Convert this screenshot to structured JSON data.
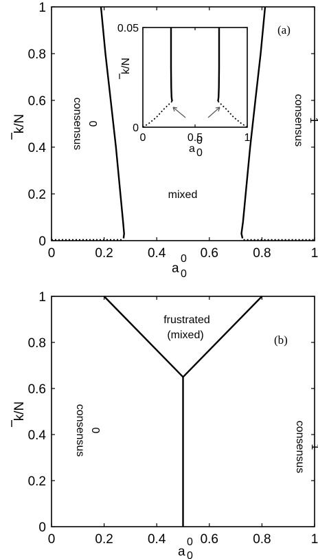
{
  "chart_data": [
    {
      "type": "line",
      "panel_label": "(a)",
      "xlabel": "a",
      "xlabel_sup": "0",
      "xlabel_sub": "0",
      "ylabel": "k/N",
      "xlim": [
        0,
        1
      ],
      "ylim": [
        0,
        1
      ],
      "xticks": [
        "0",
        "0.2",
        "0.4",
        "0.6",
        "0.8",
        "1"
      ],
      "yticks": [
        "0",
        "0.2",
        "0.4",
        "0.6",
        "0.8",
        "1"
      ],
      "annotations": {
        "left_region": "consensus",
        "left_value": "0",
        "middle_region": "mixed",
        "right_region": "consensus",
        "right_value": "1"
      },
      "series": [
        {
          "style": "solid",
          "x": [
            0.188,
            0.205,
            0.225,
            0.245,
            0.262,
            0.272,
            0.276,
            0.274
          ],
          "y": [
            1.0,
            0.8,
            0.6,
            0.4,
            0.2,
            0.08,
            0.03,
            0.01
          ]
        },
        {
          "style": "solid",
          "x": [
            0.812,
            0.795,
            0.775,
            0.755,
            0.738,
            0.728,
            0.722,
            0.726
          ],
          "y": [
            1.0,
            0.8,
            0.6,
            0.4,
            0.2,
            0.08,
            0.03,
            0.01
          ]
        },
        {
          "style": "dotted",
          "x": [
            0.0,
            0.27
          ],
          "y": [
            0.004,
            0.004
          ]
        },
        {
          "style": "dotted",
          "x": [
            0.73,
            1.0
          ],
          "y": [
            0.004,
            0.004
          ]
        }
      ],
      "inset": {
        "xlabel": "a",
        "xlabel_sup": "0",
        "xlabel_sub": "0",
        "ylabel": "k/N",
        "xlim": [
          0,
          1
        ],
        "ylim": [
          0,
          0.05
        ],
        "xticks": [
          "0",
          "0.5",
          "1"
        ],
        "yticks": [
          "0",
          "0.05"
        ],
        "series": [
          {
            "style": "solid",
            "x": [
              0.27,
              0.27,
              0.272,
              0.275,
              0.28
            ],
            "y": [
              0.05,
              0.03,
              0.02,
              0.015,
              0.013
            ]
          },
          {
            "style": "solid",
            "x": [
              0.73,
              0.73,
              0.728,
              0.725,
              0.72
            ],
            "y": [
              0.05,
              0.03,
              0.02,
              0.015,
              0.013
            ]
          },
          {
            "style": "dotted",
            "x": [
              0.0,
              0.06,
              0.13,
              0.2,
              0.28
            ],
            "y": [
              0.0,
              0.002,
              0.005,
              0.009,
              0.013
            ]
          },
          {
            "style": "dotted",
            "x": [
              0.72,
              0.8,
              0.87,
              0.94,
              1.0
            ],
            "y": [
              0.013,
              0.009,
              0.005,
              0.002,
              0.0
            ]
          }
        ]
      }
    },
    {
      "type": "line",
      "panel_label": "(b)",
      "xlabel": "a",
      "xlabel_sup": "0",
      "xlabel_sub": "0",
      "ylabel": "k/N",
      "xlim": [
        0,
        1
      ],
      "ylim": [
        0,
        1
      ],
      "xticks": [
        "0",
        "0.2",
        "0.4",
        "0.6",
        "0.8",
        "1"
      ],
      "yticks": [
        "0",
        "0.2",
        "0.4",
        "0.6",
        "0.8",
        "1"
      ],
      "annotations": {
        "left_region": "consensus",
        "left_value": "0",
        "top_region": "frustrated",
        "top_region_2": "(mixed)",
        "right_region": "consensus",
        "right_value": "1"
      },
      "series": [
        {
          "style": "solid",
          "x": [
            0.2,
            0.5
          ],
          "y": [
            1.0,
            0.65
          ]
        },
        {
          "style": "solid",
          "x": [
            0.8,
            0.5
          ],
          "y": [
            1.0,
            0.65
          ]
        },
        {
          "style": "solid",
          "x": [
            0.5,
            0.5
          ],
          "y": [
            0.65,
            0.0
          ]
        }
      ]
    }
  ]
}
